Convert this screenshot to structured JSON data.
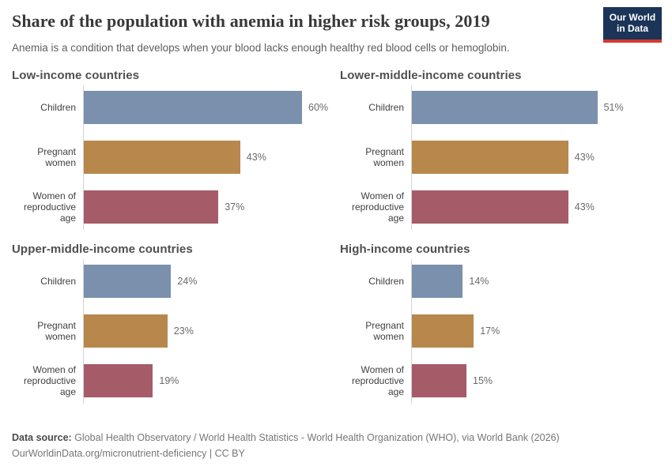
{
  "header": {
    "title": "Share of the population with anemia in higher risk groups, 2019",
    "subtitle": "Anemia is a condition that develops when your blood lacks enough healthy red blood cells or hemoglobin.",
    "logo": {
      "line1": "Our World",
      "line2": "in Data",
      "bg_color": "#1b3458",
      "stripe_color": "#d4392e"
    }
  },
  "chart_data": {
    "type": "bar",
    "orientation": "horizontal",
    "unit": "%",
    "grid": false,
    "legend": "none",
    "xlim": [
      0,
      65
    ],
    "categories": [
      "Children",
      "Pregnant women",
      "Women of reproductive age"
    ],
    "bar_colors": [
      "#7a90ac",
      "#b7874c",
      "#a55b68"
    ],
    "panels": [
      {
        "title": "Low-income countries",
        "values": [
          60,
          43,
          37
        ],
        "labels": [
          "60%",
          "43%",
          "37%"
        ]
      },
      {
        "title": "Lower-middle-income countries",
        "values": [
          51,
          43,
          43
        ],
        "labels": [
          "51%",
          "43%",
          "43%"
        ]
      },
      {
        "title": "Upper-middle-income countries",
        "values": [
          24,
          23,
          19
        ],
        "labels": [
          "24%",
          "23%",
          "19%"
        ]
      },
      {
        "title": "High-income countries",
        "values": [
          14,
          17,
          15
        ],
        "labels": [
          "14%",
          "17%",
          "15%"
        ]
      }
    ]
  },
  "footer": {
    "source_label": "Data source:",
    "source_text": " Global Health Observatory / World Health Statistics - World Health Organization (WHO), via World Bank (2026)",
    "link_text": "OurWorldinData.org/micronutrient-deficiency | CC BY"
  }
}
